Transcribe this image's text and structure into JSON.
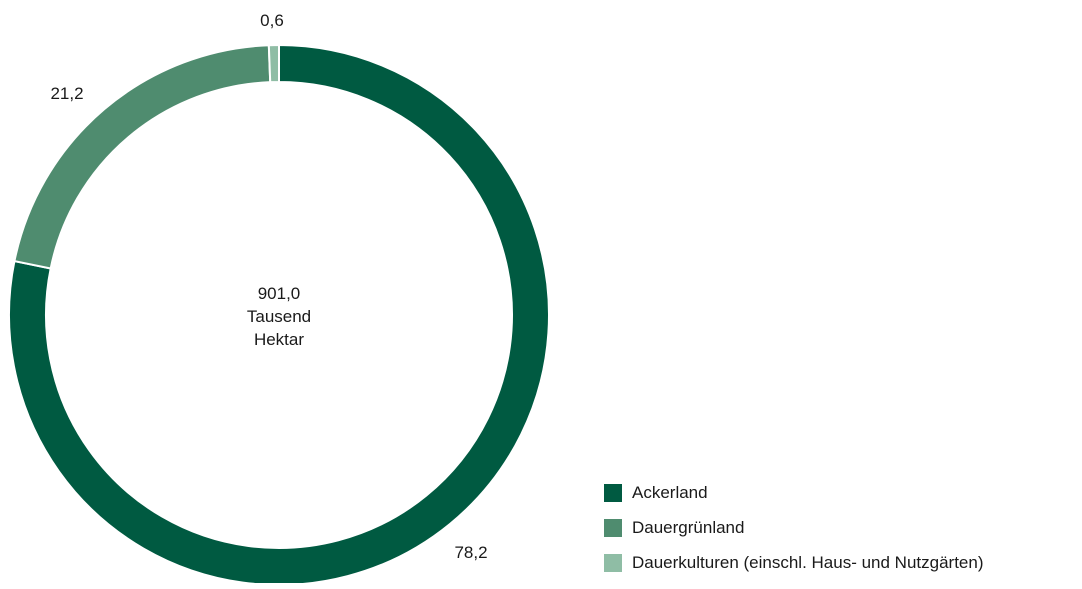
{
  "chart_data": {
    "type": "pie",
    "style": "donut",
    "center": {
      "value": "901,0",
      "line2": "Tausend",
      "line3": "Hektar"
    },
    "slices": [
      {
        "label": "Ackerland",
        "value": 78.2,
        "value_text": "78,2",
        "color": "#005a41"
      },
      {
        "label": "Dauergrünland",
        "value": 21.2,
        "value_text": "21,2",
        "color": "#4f8c6f"
      },
      {
        "label": "Dauerkulturen (einschl. Haus- und Nutzgärten)",
        "value": 0.6,
        "value_text": "0,6",
        "color": "#8fbda5"
      }
    ],
    "legend_position": "bottom-right"
  }
}
